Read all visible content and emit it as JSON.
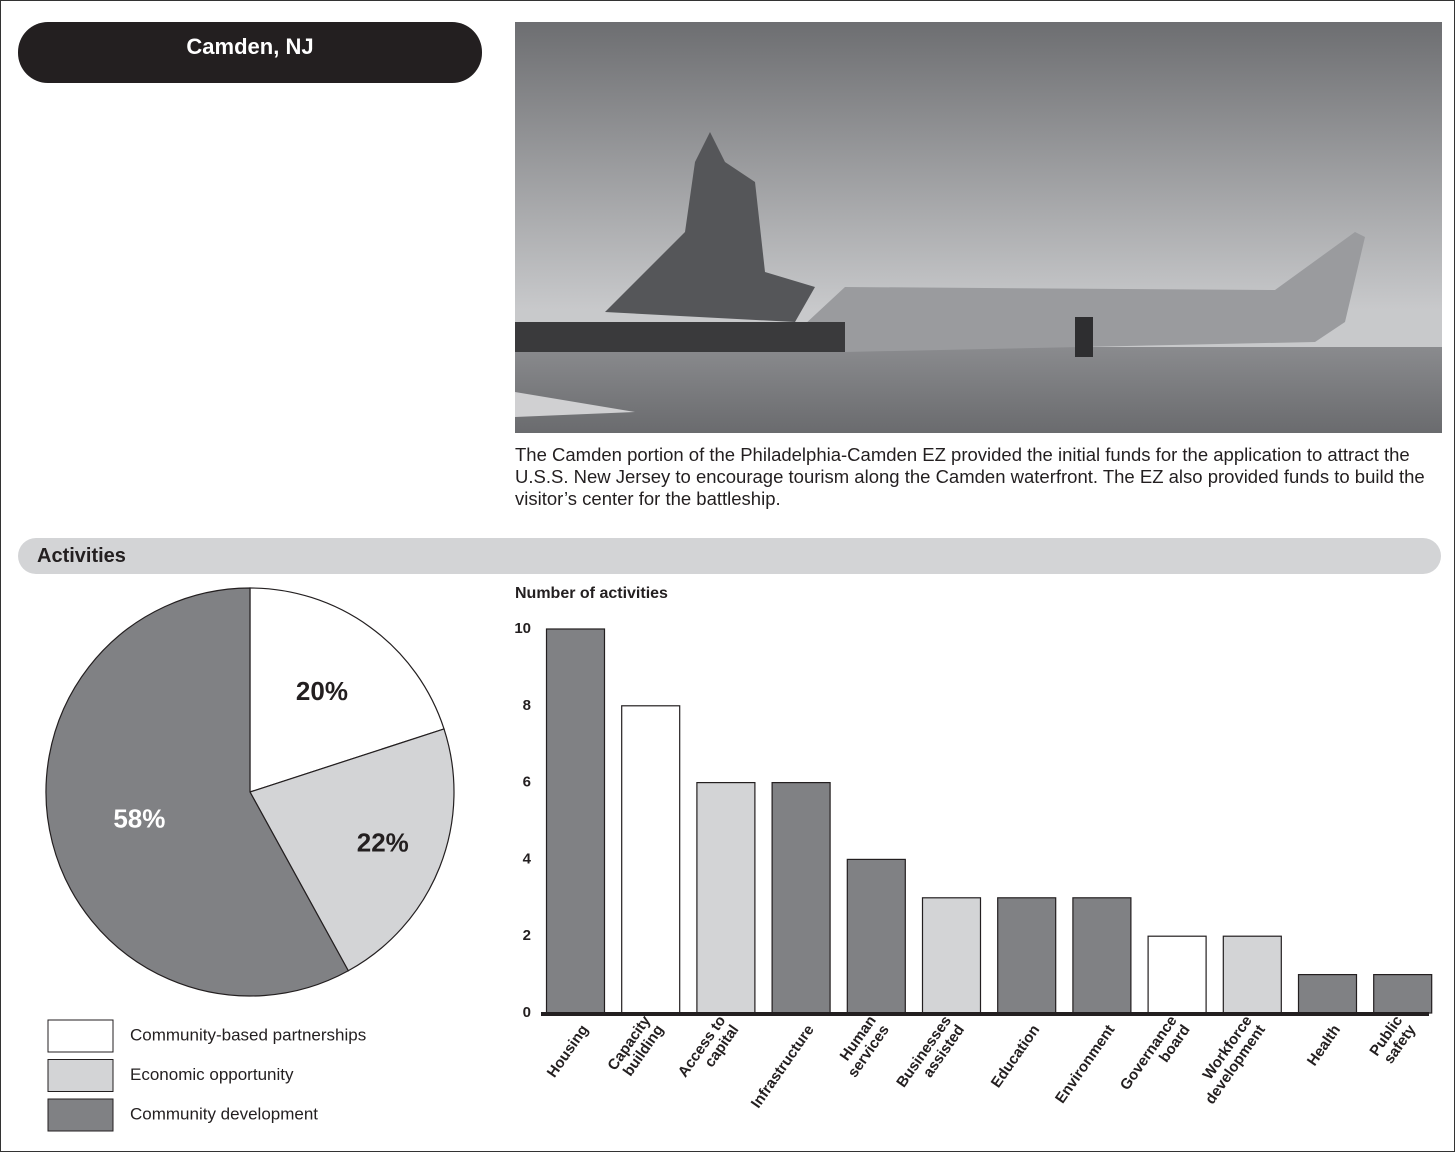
{
  "header": {
    "title": "Camden, NJ"
  },
  "photo": {
    "caption": "The Camden portion of the Philadelphia-Camden EZ provided the initial funds for the application to attract the U.S.S. New Jersey to encourage tourism along the Camden waterfront. The EZ also provided funds to build the visitor’s center for the battleship."
  },
  "section": {
    "title": "Activities"
  },
  "chart_data": [
    {
      "type": "pie",
      "categories": [
        "Community-based partnerships",
        "Economic opportunity",
        "Community development"
      ],
      "values": [
        20,
        22,
        58
      ],
      "value_labels": [
        "20%",
        "22%",
        "58%"
      ],
      "colors": [
        "#ffffff",
        "#d3d4d6",
        "#808184"
      ]
    },
    {
      "type": "bar",
      "y_label": "Number of activities",
      "categories": [
        "Housing",
        "Capacity\nbuilding",
        "Access to\ncapital",
        "Infrastructure",
        "Human\nservices",
        "Businesses\nassisted",
        "Education",
        "Environment",
        "Governance\nboard",
        "Workforce\ndevelopment",
        "Health",
        "Public\nsafety"
      ],
      "values": [
        10,
        8,
        6,
        6,
        4,
        3,
        3,
        3,
        2,
        2,
        1,
        1
      ],
      "colors": [
        "#808184",
        "#ffffff",
        "#d3d4d6",
        "#808184",
        "#808184",
        "#d3d4d6",
        "#808184",
        "#808184",
        "#ffffff",
        "#d3d4d6",
        "#808184",
        "#808184"
      ],
      "ylim": [
        0,
        10
      ],
      "yticks": [
        0,
        2,
        4,
        6,
        8,
        10
      ],
      "grid": false
    }
  ]
}
